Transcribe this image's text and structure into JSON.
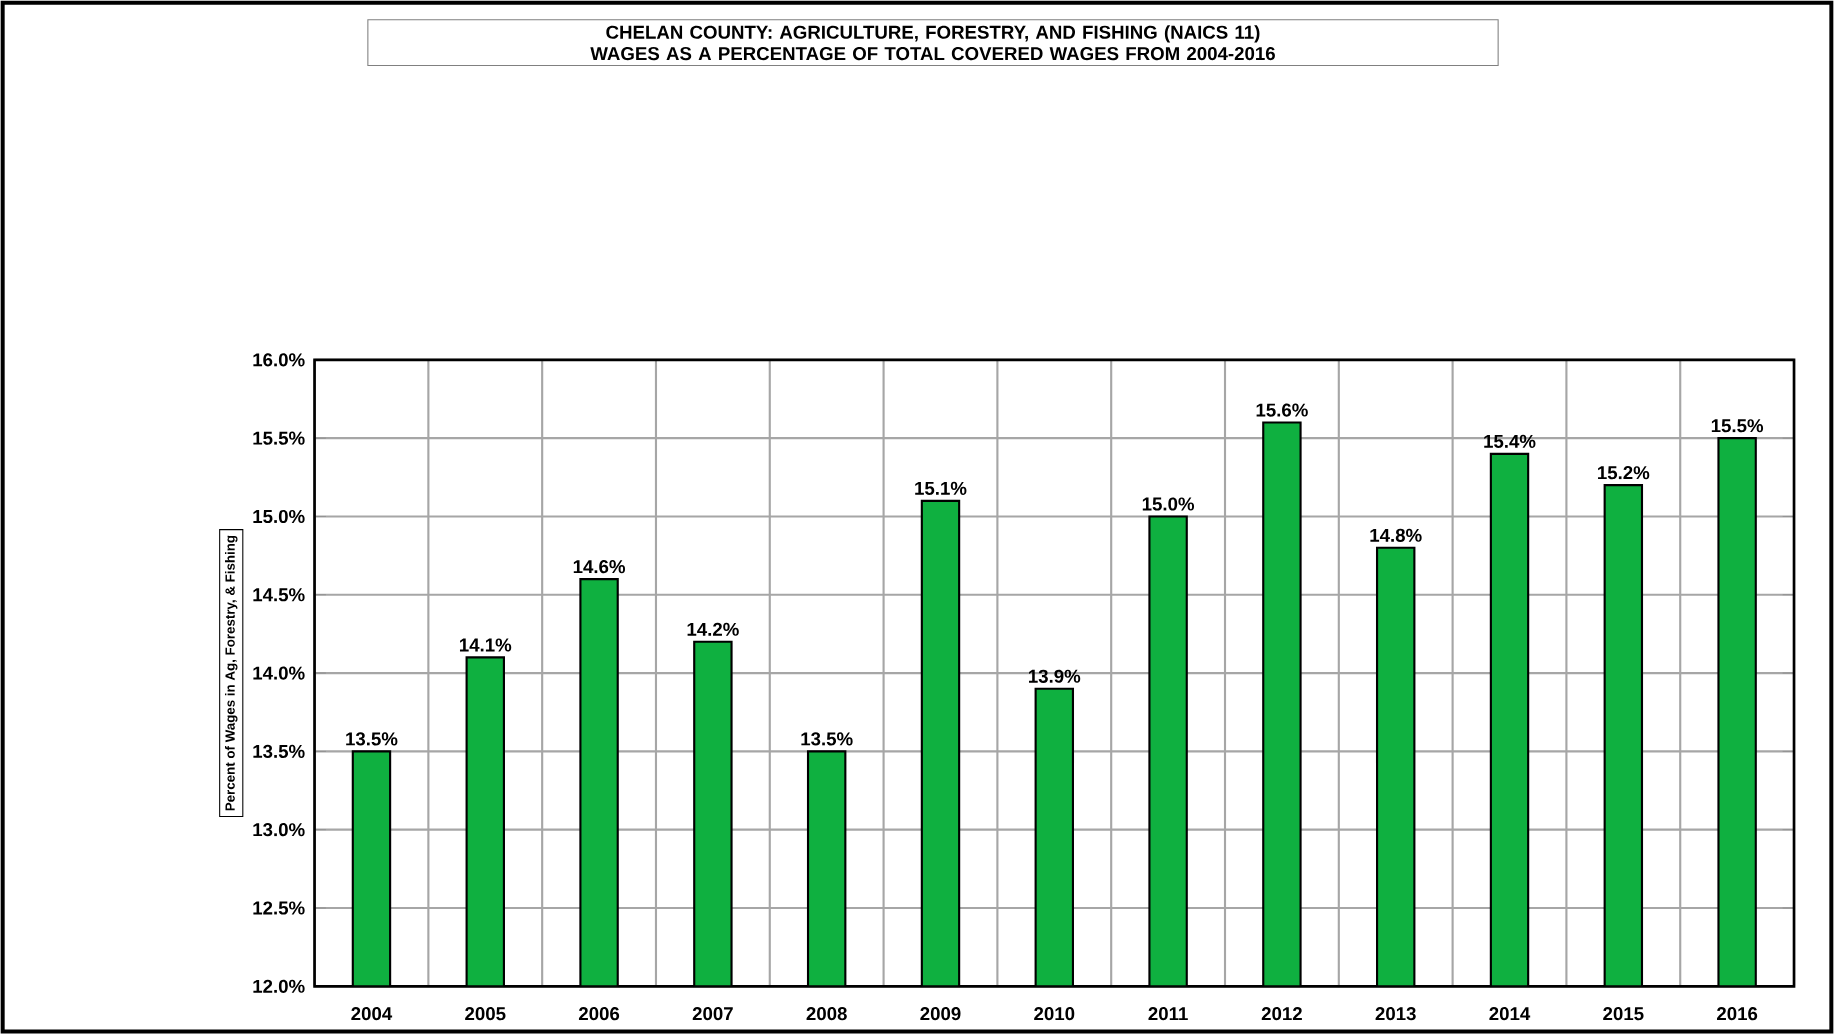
{
  "chart_data": {
    "type": "bar",
    "title": "CHELAN COUNTY: AGRICULTURE, FORESTRY, AND FISHING (NAICS 11) WAGES AS A PERCENTAGE OF TOTAL COVERED WAGES FROM 2004-2016",
    "ylabel": "Percent of Wages in Ag, Forestry, & Fishing",
    "categories": [
      "2004",
      "2005",
      "2006",
      "2007",
      "2008",
      "2009",
      "2010",
      "2011",
      "2012",
      "2013",
      "2014",
      "2015",
      "2016"
    ],
    "values": [
      13.5,
      14.1,
      14.6,
      14.2,
      13.5,
      15.1,
      13.9,
      15.0,
      15.6,
      14.8,
      15.4,
      15.2,
      15.5
    ],
    "value_labels": [
      "13.5%",
      "14.1%",
      "14.6%",
      "14.2%",
      "13.5%",
      "15.1%",
      "13.9%",
      "15.0%",
      "15.6%",
      "14.8%",
      "15.4%",
      "15.2%",
      "15.5%"
    ],
    "color": "#0fb040",
    "ylim": [
      12.0,
      16.0
    ],
    "yticks": [
      {
        "value": 12.0,
        "label": "12.0%"
      },
      {
        "value": 12.5,
        "label": "12.5%"
      },
      {
        "value": 13.0,
        "label": "13.0%"
      },
      {
        "value": 13.5,
        "label": "13.5%"
      },
      {
        "value": 14.0,
        "label": "14.0%"
      },
      {
        "value": 14.5,
        "label": "14.5%"
      },
      {
        "value": 15.0,
        "label": "15.0%"
      },
      {
        "value": 15.5,
        "label": "15.5%"
      },
      {
        "value": 16.0,
        "label": "16.0%"
      }
    ],
    "grid": true
  }
}
